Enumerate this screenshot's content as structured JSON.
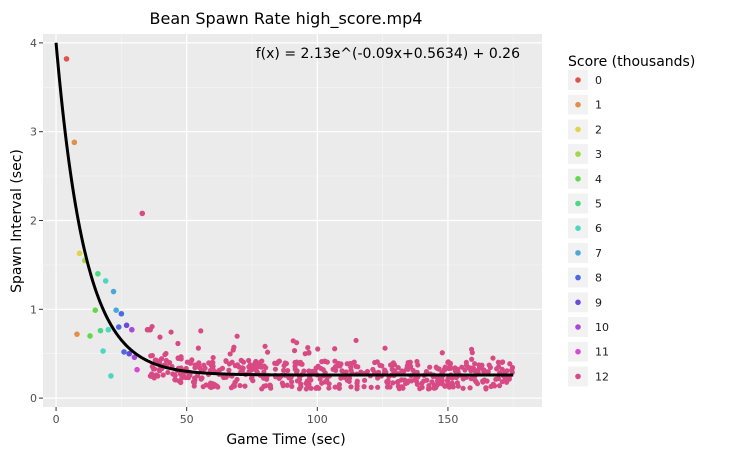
{
  "chart_data": {
    "type": "scatter",
    "title": "Bean Spawn Rate high_score.mp4",
    "xlabel": "Game Time (sec)",
    "ylabel": "Spawn Interval (sec)",
    "xlim": [
      -5,
      186
    ],
    "ylim": [
      -0.1,
      4.1
    ],
    "x_ticks": [
      0,
      50,
      100,
      150
    ],
    "y_ticks": [
      0,
      1,
      2,
      3,
      4
    ],
    "grid": true,
    "annotation": "f(x) = 2.13e^(-0.09x+0.5634) + 0.26",
    "fit_curve": {
      "a": 2.13,
      "b": -0.09,
      "c": 0.5634,
      "d": 0.26,
      "x_range": [
        0,
        175
      ]
    },
    "legend": {
      "title": "Score (thousands)",
      "placement": "right",
      "entries": [
        {
          "label": "0",
          "color": "#e2524a"
        },
        {
          "label": "1",
          "color": "#e28f4a"
        },
        {
          "label": "2",
          "color": "#dfd44a"
        },
        {
          "label": "3",
          "color": "#9fd84a"
        },
        {
          "label": "4",
          "color": "#62d84a"
        },
        {
          "label": "5",
          "color": "#4ad881"
        },
        {
          "label": "6",
          "color": "#4ad8c0"
        },
        {
          "label": "7",
          "color": "#4aa8d8"
        },
        {
          "label": "8",
          "color": "#4a6ae2"
        },
        {
          "label": "9",
          "color": "#6a4ad8"
        },
        {
          "label": "10",
          "color": "#a84ad8"
        },
        {
          "label": "11",
          "color": "#d84ad0"
        },
        {
          "label": "12",
          "color": "#d84a84"
        }
      ]
    },
    "scored_points": [
      {
        "x": 4,
        "y": 3.82,
        "group": 0
      },
      {
        "x": 7,
        "y": 2.88,
        "group": 1
      },
      {
        "x": 8,
        "y": 0.72,
        "group": 1
      },
      {
        "x": 9,
        "y": 1.63,
        "group": 2
      },
      {
        "x": 11,
        "y": 1.55,
        "group": 3
      },
      {
        "x": 13,
        "y": 0.7,
        "group": 4
      },
      {
        "x": 15,
        "y": 0.99,
        "group": 4
      },
      {
        "x": 16,
        "y": 1.4,
        "group": 5
      },
      {
        "x": 17,
        "y": 0.76,
        "group": 5
      },
      {
        "x": 18,
        "y": 0.53,
        "group": 6
      },
      {
        "x": 19,
        "y": 1.32,
        "group": 6
      },
      {
        "x": 20,
        "y": 0.77,
        "group": 6
      },
      {
        "x": 21,
        "y": 0.25,
        "group": 6
      },
      {
        "x": 22,
        "y": 1.2,
        "group": 7
      },
      {
        "x": 23,
        "y": 0.99,
        "group": 7
      },
      {
        "x": 24,
        "y": 0.8,
        "group": 8
      },
      {
        "x": 25,
        "y": 0.95,
        "group": 8
      },
      {
        "x": 26,
        "y": 0.52,
        "group": 8
      },
      {
        "x": 27,
        "y": 0.82,
        "group": 9
      },
      {
        "x": 28,
        "y": 0.5,
        "group": 9
      },
      {
        "x": 29,
        "y": 0.77,
        "group": 10
      },
      {
        "x": 30,
        "y": 0.46,
        "group": 10
      },
      {
        "x": 31,
        "y": 0.32,
        "group": 11
      },
      {
        "x": 33,
        "y": 2.08,
        "group": 12
      },
      {
        "x": 35,
        "y": 0.77,
        "group": 12
      },
      {
        "x": 36,
        "y": 0.77,
        "group": 12
      }
    ],
    "dense_cloud": {
      "group": 12,
      "x_range": [
        36,
        175
      ],
      "y_center_note": "follows fit curve with ±0.15 scatter",
      "count": 520
    }
  }
}
